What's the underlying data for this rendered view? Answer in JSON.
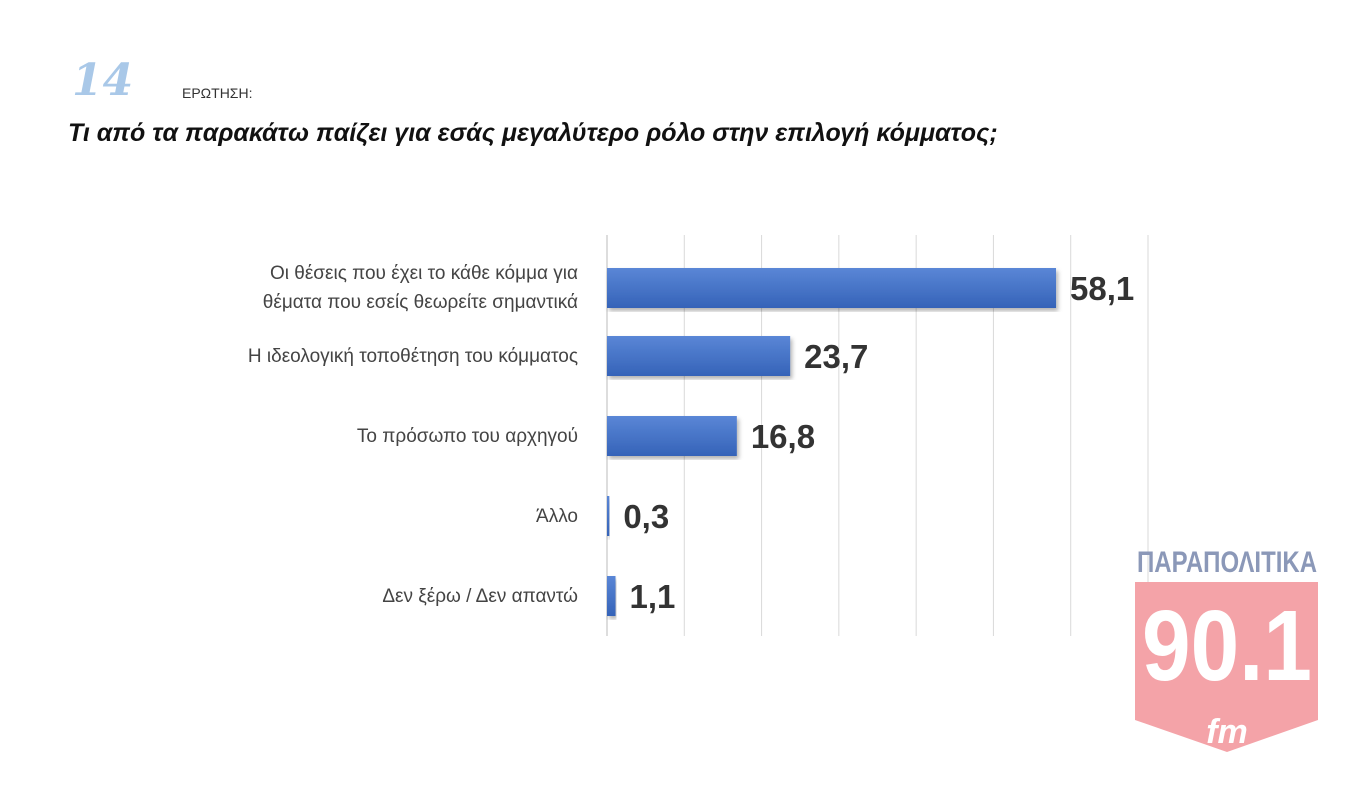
{
  "header": {
    "question_number": "14",
    "question_label": "ΕΡΩΤΗΣΗ:",
    "title": "Τι από τα παρακάτω παίζει για εσάς μεγαλύτερο ρόλο στην επιλογή κόμματος;"
  },
  "chart_data": {
    "type": "bar",
    "orientation": "horizontal",
    "categories": [
      "Οι θέσεις που έχει το κάθε κόμμα για θέματα που εσείς θεωρείτε σημαντικά",
      "Η ιδεολογική τοποθέτηση του κόμματος",
      "Το πρόσωπο του αρχηγού",
      "Άλλο",
      "Δεν ξέρω / Δεν απαντώ"
    ],
    "category_lines": [
      [
        "Οι θέσεις που έχει το κάθε κόμμα για",
        "θέματα που εσείς θεωρείτε σημαντικά"
      ],
      [
        "Η ιδεολογική τοποθέτηση του κόμματος"
      ],
      [
        "Το πρόσωπο του αρχηγού"
      ],
      [
        "Άλλο"
      ],
      [
        "Δεν ξέρω / Δεν απαντώ"
      ]
    ],
    "values": [
      58.1,
      23.7,
      16.8,
      0.3,
      1.1
    ],
    "value_labels": [
      "58,1",
      "23,7",
      "16,8",
      "0,3",
      "1,1"
    ],
    "xlim": [
      0,
      70
    ],
    "grid": true,
    "bar_color": "#4472c4"
  },
  "logo": {
    "top_text": "ΠΑΡΑΠΟΛΙΤΙΚΑ",
    "number": "90.1",
    "suffix": "fm",
    "color": "#f4a3a8",
    "text_color": "#8b98b8"
  }
}
